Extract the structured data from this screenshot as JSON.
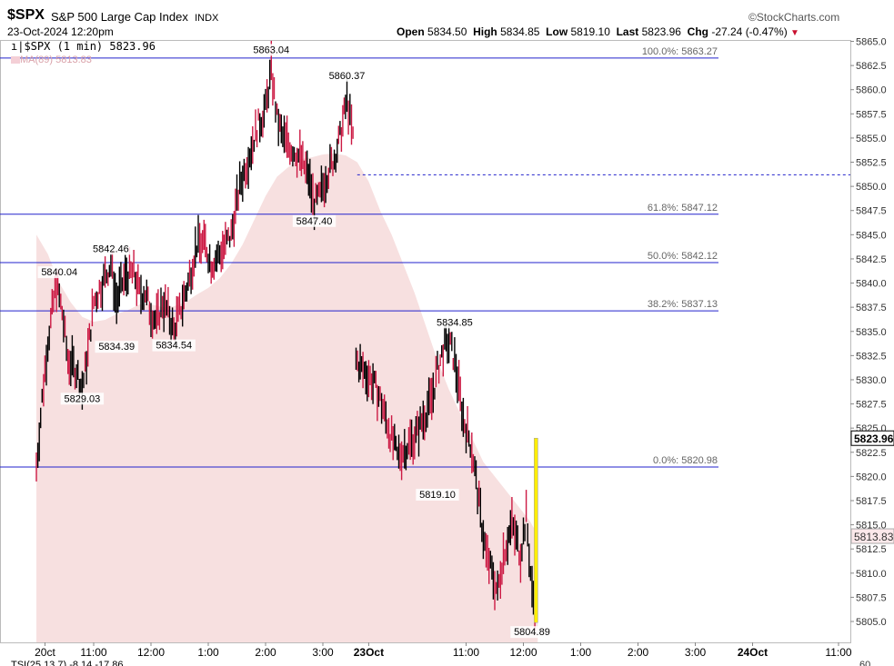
{
  "header": {
    "symbol": "$SPX",
    "name": "S&P 500 Large Cap Index",
    "exchange": "INDX",
    "date": "23-Oct-2024 12:20pm",
    "brand": "©StockCharts.com",
    "open_label": "Open",
    "open": "5834.50",
    "high_label": "High",
    "high": "5834.85",
    "low_label": "Low",
    "low": "5819.10",
    "last_label": "Last",
    "last": "5823.96",
    "chg_label": "Chg",
    "chg": "-27.24 (-0.47%)"
  },
  "legend": {
    "price": "$SPX (1 min) 5823.96",
    "ma": "MA(89) 5813.83"
  },
  "colors": {
    "fib": "#2222cc",
    "ma_fill": "#f7e0e0",
    "up": "#000000",
    "down": "#cc1a44",
    "volume_bar": "#ffee00",
    "label_text": "#555555"
  },
  "chart_data": {
    "type": "candlestick",
    "interval": "1 min",
    "ylim": [
      5802.5,
      5865
    ],
    "y_ticks": [
      "5805.0",
      "5807.5",
      "5810.0",
      "5812.5",
      "5815.0",
      "5817.5",
      "5820.0",
      "5822.5",
      "5825.0",
      "5827.5",
      "5830.0",
      "5832.5",
      "5835.0",
      "5837.5",
      "5840.0",
      "5842.5",
      "5845.0",
      "5847.5",
      "5850.0",
      "5852.5",
      "5855.0",
      "5857.5",
      "5860.0",
      "5862.5",
      "5865.0"
    ],
    "x_ticks": [
      {
        "label": "20ct",
        "t": -1.85
      },
      {
        "label": "11:00",
        "t": -1.0
      },
      {
        "label": "12:00",
        "t": 0.0
      },
      {
        "label": "1:00",
        "t": 1.0
      },
      {
        "label": "2:00",
        "t": 2.0
      },
      {
        "label": "3:00",
        "t": 3.0
      },
      {
        "label": "23Oct",
        "t": 3.8
      },
      {
        "label": "11:00",
        "t": 5.5
      },
      {
        "label": "12:00",
        "t": 6.5
      },
      {
        "label": "1:00",
        "t": 7.5
      },
      {
        "label": "2:00",
        "t": 8.5
      },
      {
        "label": "3:00",
        "t": 9.5
      },
      {
        "label": "24Oct",
        "t": 10.5
      },
      {
        "label": "11:00",
        "t": 12.0
      }
    ],
    "fib_levels": [
      {
        "label": "100.0%: 5863.27",
        "value": 5863.27
      },
      {
        "label": "61.8%: 5847.12",
        "value": 5847.12
      },
      {
        "label": "50.0%: 5842.12",
        "value": 5842.12
      },
      {
        "label": "38.2%: 5837.13",
        "value": 5837.13
      },
      {
        "label": "0.0%: 5820.98",
        "value": 5820.98
      }
    ],
    "prev_close_level": 5851.2,
    "annotations": [
      {
        "label": "5863.04",
        "t": 2.1,
        "value": 5863.04,
        "pos": "above"
      },
      {
        "label": "5860.37",
        "t": 3.42,
        "value": 5860.37,
        "pos": "above"
      },
      {
        "label": "5847.40",
        "t": 2.85,
        "value": 5847.4,
        "pos": "below"
      },
      {
        "label": "5842.46",
        "t": -0.7,
        "value": 5842.46,
        "pos": "above"
      },
      {
        "label": "5840.04",
        "t": -1.6,
        "value": 5840.04,
        "pos": "above"
      },
      {
        "label": "5834.39",
        "t": -0.6,
        "value": 5834.39,
        "pos": "below"
      },
      {
        "label": "5834.54",
        "t": 0.4,
        "value": 5834.54,
        "pos": "below"
      },
      {
        "label": "5829.03",
        "t": -1.2,
        "value": 5829.03,
        "pos": "below"
      },
      {
        "label": "5834.85",
        "t": 5.3,
        "value": 5834.85,
        "pos": "above"
      },
      {
        "label": "5819.10",
        "t": 5.0,
        "value": 5819.1,
        "pos": "below"
      },
      {
        "label": "5804.89",
        "t": 6.65,
        "value": 5804.89,
        "pos": "below"
      }
    ],
    "series": [
      {
        "name": "$SPX (1 min)",
        "path": [
          [
            -2.0,
            5821
          ],
          [
            -1.9,
            5828
          ],
          [
            -1.8,
            5834
          ],
          [
            -1.65,
            5840
          ],
          [
            -1.55,
            5837
          ],
          [
            -1.45,
            5832
          ],
          [
            -1.3,
            5831
          ],
          [
            -1.2,
            5829
          ],
          [
            -1.1,
            5833
          ],
          [
            -1.0,
            5838
          ],
          [
            -0.85,
            5840
          ],
          [
            -0.7,
            5842
          ],
          [
            -0.6,
            5838
          ],
          [
            -0.5,
            5840
          ],
          [
            -0.4,
            5841
          ],
          [
            -0.3,
            5841
          ],
          [
            -0.2,
            5839
          ],
          [
            -0.1,
            5839
          ],
          [
            0.0,
            5837
          ],
          [
            0.1,
            5836
          ],
          [
            0.2,
            5838
          ],
          [
            0.3,
            5837
          ],
          [
            0.4,
            5835
          ],
          [
            0.5,
            5837
          ],
          [
            0.65,
            5840
          ],
          [
            0.8,
            5844
          ],
          [
            0.95,
            5844
          ],
          [
            1.05,
            5842
          ],
          [
            1.2,
            5843
          ],
          [
            1.4,
            5845
          ],
          [
            1.55,
            5850
          ],
          [
            1.7,
            5853
          ],
          [
            1.85,
            5856
          ],
          [
            2.0,
            5858
          ],
          [
            2.1,
            5862
          ],
          [
            2.2,
            5857
          ],
          [
            2.3,
            5855
          ],
          [
            2.45,
            5854
          ],
          [
            2.6,
            5853
          ],
          [
            2.75,
            5851
          ],
          [
            2.85,
            5848
          ],
          [
            2.95,
            5849
          ],
          [
            3.05,
            5851
          ],
          [
            3.2,
            5853
          ],
          [
            3.3,
            5855
          ],
          [
            3.42,
            5859
          ],
          [
            3.5,
            5856
          ],
          [
            3.55,
            5854
          ],
          [
            3.58,
            5832
          ],
          [
            3.7,
            5831
          ],
          [
            3.85,
            5830
          ],
          [
            4.0,
            5828
          ],
          [
            4.15,
            5825
          ],
          [
            4.3,
            5822
          ],
          [
            4.45,
            5823
          ],
          [
            4.6,
            5824
          ],
          [
            4.75,
            5826
          ],
          [
            4.9,
            5828
          ],
          [
            5.0,
            5831
          ],
          [
            5.1,
            5833
          ],
          [
            5.2,
            5834
          ],
          [
            5.3,
            5832
          ],
          [
            5.45,
            5826
          ],
          [
            5.6,
            5823
          ],
          [
            5.75,
            5816
          ],
          [
            5.85,
            5812
          ],
          [
            5.95,
            5810
          ],
          [
            6.05,
            5808
          ],
          [
            6.15,
            5812
          ],
          [
            6.3,
            5815
          ],
          [
            6.45,
            5812
          ],
          [
            6.55,
            5816
          ],
          [
            6.65,
            5808
          ],
          [
            6.75,
            5806
          ]
        ]
      }
    ],
    "ma_series": {
      "name": "MA(89)",
      "path": [
        [
          -2.0,
          5845
        ],
        [
          -1.8,
          5843
        ],
        [
          -1.6,
          5840
        ],
        [
          -1.4,
          5838
        ],
        [
          -1.2,
          5836.5
        ],
        [
          -1.0,
          5836
        ],
        [
          -0.8,
          5836.2
        ],
        [
          -0.6,
          5836.8
        ],
        [
          -0.4,
          5837.2
        ],
        [
          -0.2,
          5837.8
        ],
        [
          0.0,
          5837.8
        ],
        [
          0.2,
          5837.5
        ],
        [
          0.4,
          5837.6
        ],
        [
          0.6,
          5838
        ],
        [
          0.8,
          5838.8
        ],
        [
          1.0,
          5839.5
        ],
        [
          1.2,
          5840.5
        ],
        [
          1.4,
          5842
        ],
        [
          1.6,
          5844
        ],
        [
          1.8,
          5846.5
        ],
        [
          2.0,
          5849
        ],
        [
          2.2,
          5851
        ],
        [
          2.4,
          5852
        ],
        [
          2.6,
          5852.8
        ],
        [
          2.8,
          5853
        ],
        [
          3.0,
          5853.3
        ],
        [
          3.2,
          5853.4
        ],
        [
          3.4,
          5853.2
        ],
        [
          3.6,
          5852.5
        ],
        [
          3.8,
          5850.5
        ],
        [
          4.0,
          5847.5
        ],
        [
          4.2,
          5845
        ],
        [
          4.4,
          5842
        ],
        [
          4.6,
          5839
        ],
        [
          4.8,
          5835.5
        ],
        [
          5.0,
          5832
        ],
        [
          5.2,
          5829
        ],
        [
          5.4,
          5826.5
        ],
        [
          5.6,
          5824
        ],
        [
          5.8,
          5821.5
        ],
        [
          6.0,
          5820
        ],
        [
          6.2,
          5818.5
        ],
        [
          6.4,
          5817
        ],
        [
          6.6,
          5815.5
        ],
        [
          6.75,
          5814
        ]
      ]
    },
    "volume_marker": {
      "t": 6.72,
      "from": 5804.89,
      "to": 5823.96
    },
    "last_price_tag": "5823.96",
    "ma_price_tag": "5813.83"
  },
  "bottom": {
    "indicator_label": "TSI(25,13,7)",
    "indicator_values": "-8.14 -17.86",
    "right_value": "60"
  }
}
